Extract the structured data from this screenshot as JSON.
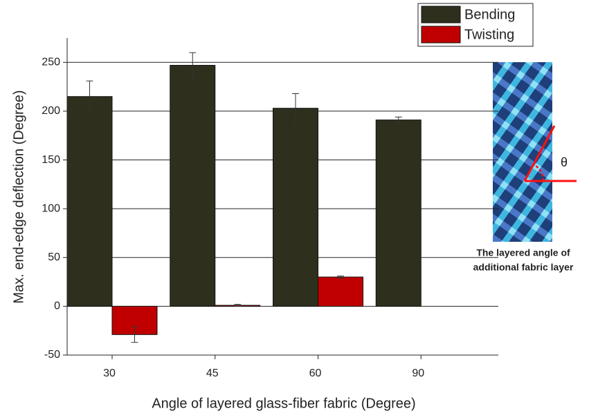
{
  "chart_data": {
    "type": "bar",
    "x_label": "Angle of layered glass-fiber fabric (Degree)",
    "y_label": "Max. end-edge deflection (Degree)",
    "categories": [
      "30",
      "45",
      "60",
      "90"
    ],
    "series": [
      {
        "name": "Bending",
        "color": "#2f2f1d",
        "values": [
          215,
          247,
          203,
          191
        ],
        "errors": [
          16,
          13,
          15,
          3
        ]
      },
      {
        "name": "Twisting",
        "color": "#c00000",
        "values": [
          -29,
          1,
          30,
          null
        ],
        "errors": [
          8,
          1,
          1,
          null
        ]
      }
    ],
    "ylim": [
      -50,
      275
    ],
    "yticks": [
      -50,
      0,
      50,
      100,
      150,
      200,
      250
    ],
    "grid": true,
    "legend": "top-right"
  },
  "inset": {
    "symbol": "θ",
    "caption": [
      "The layered angle of",
      "additional fabric layer"
    ]
  }
}
